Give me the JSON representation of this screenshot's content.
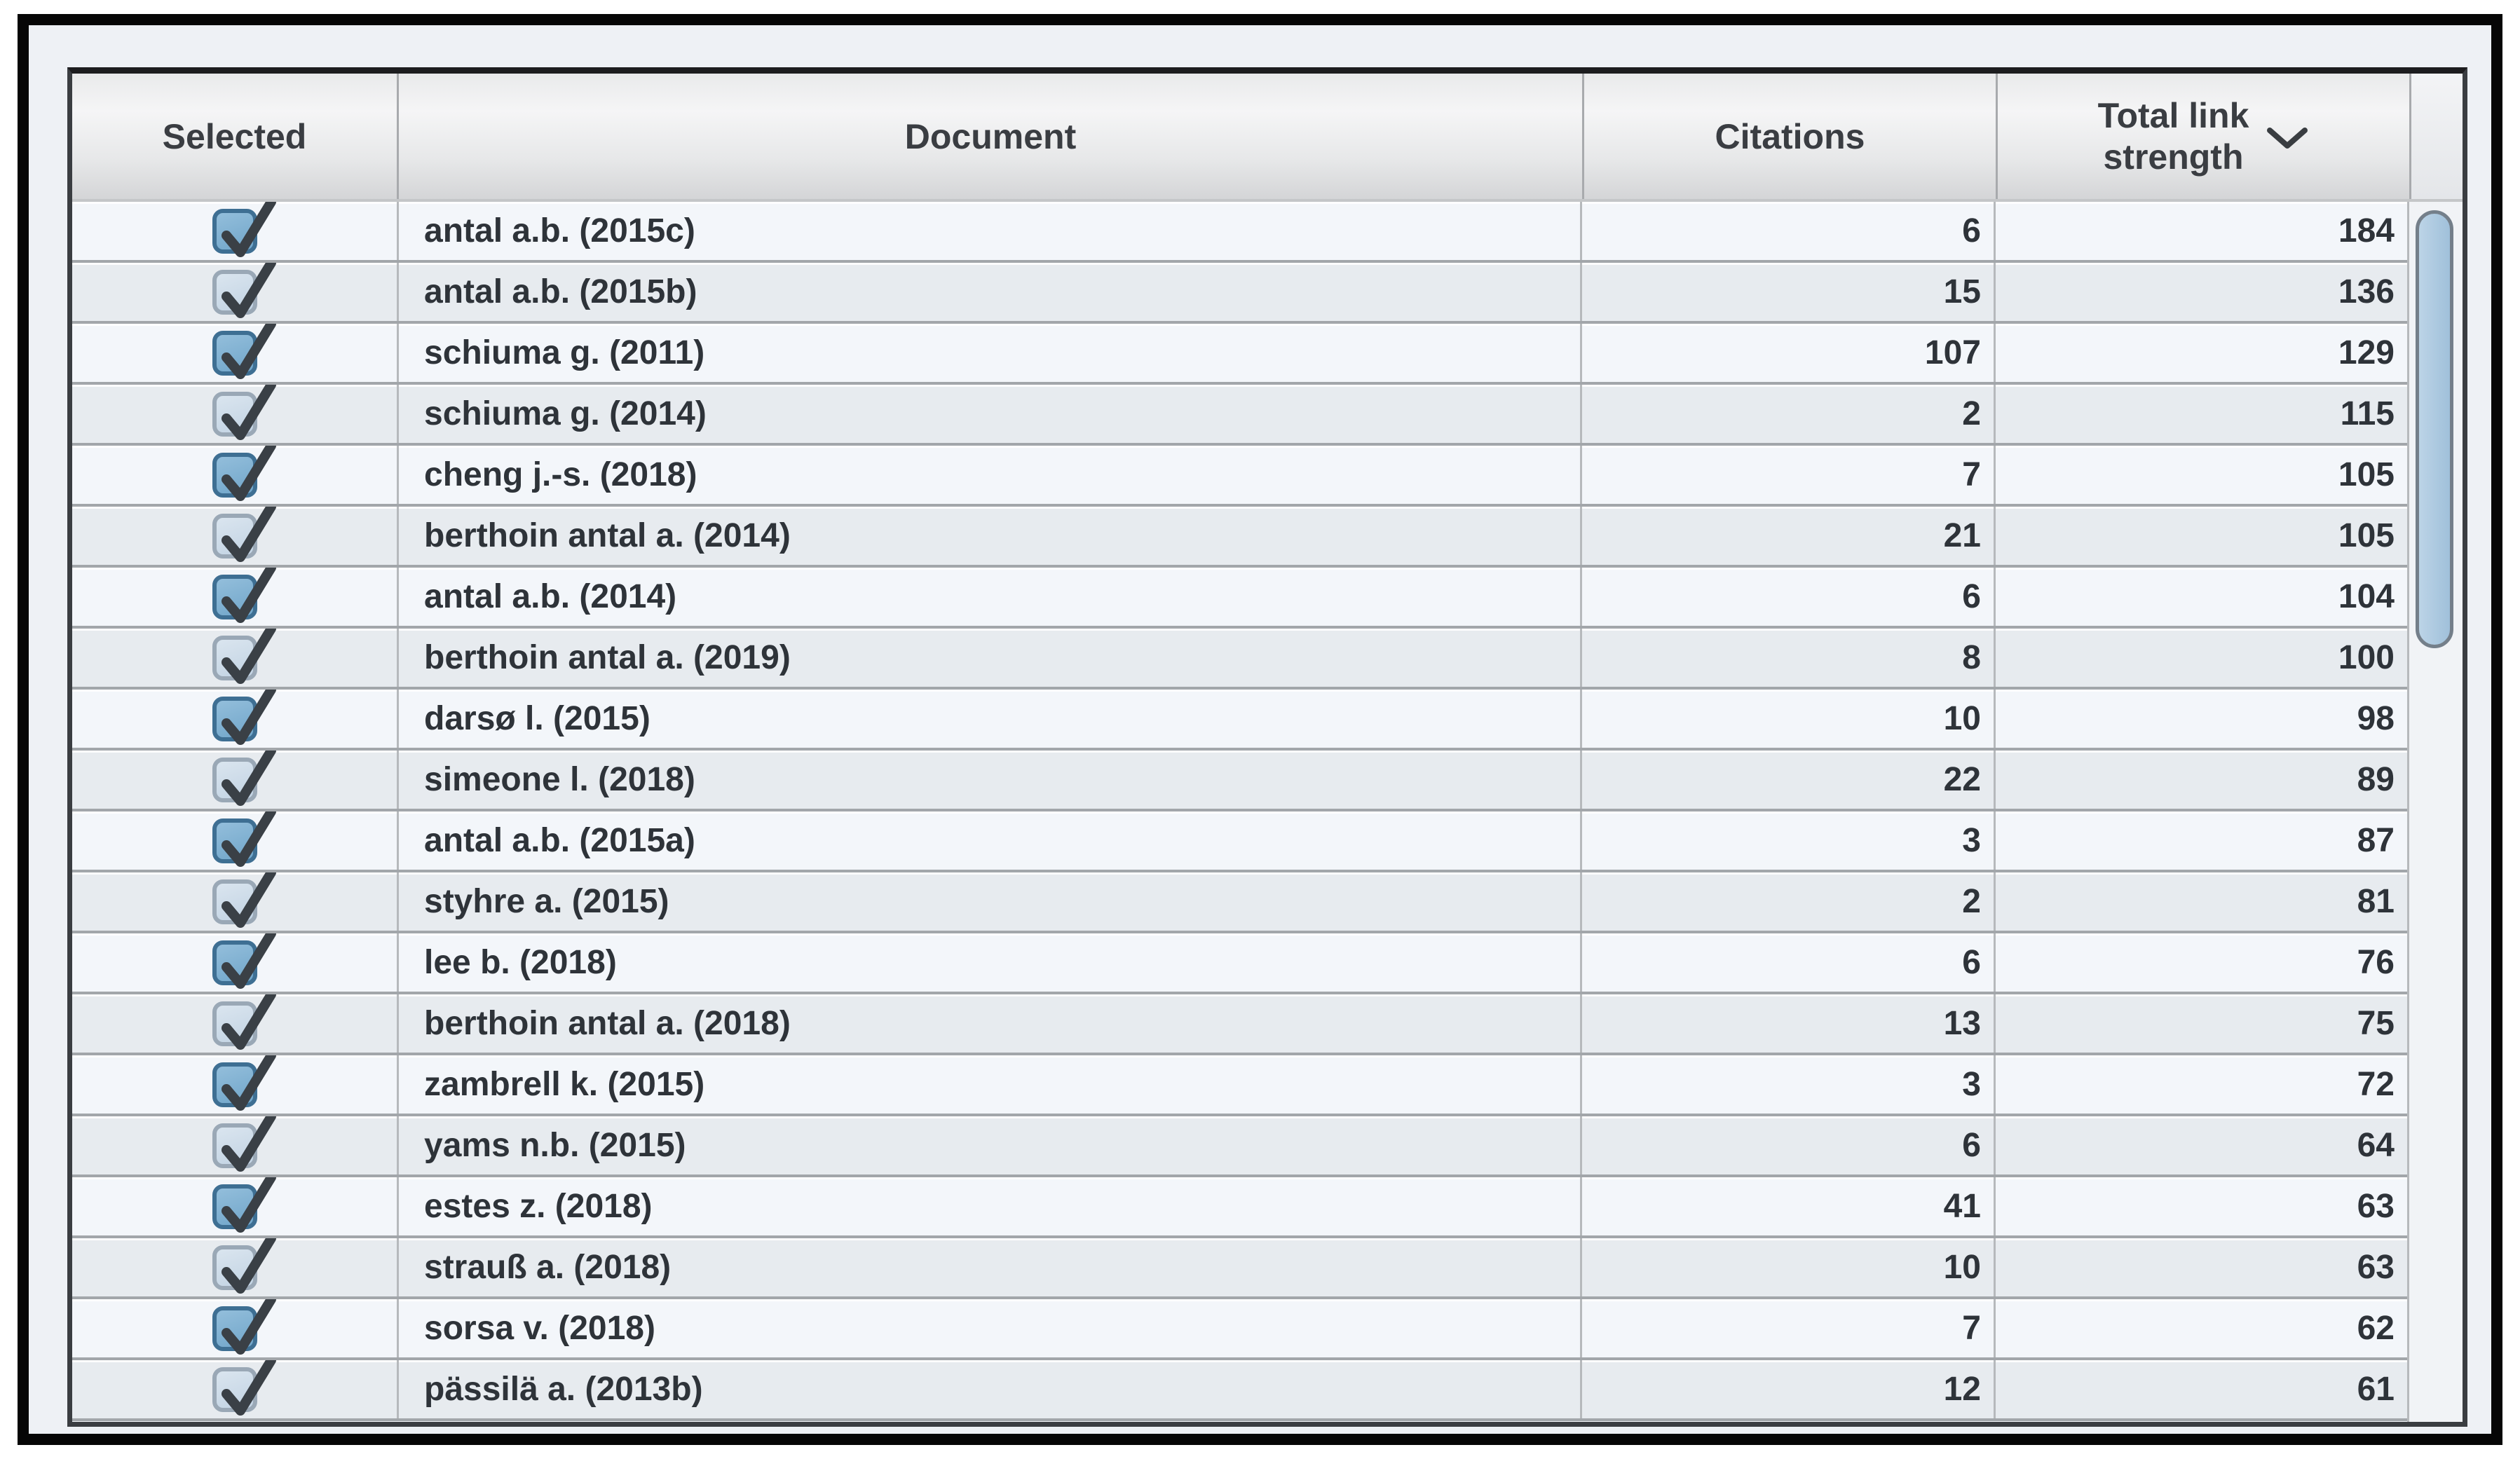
{
  "table": {
    "columns": [
      {
        "key": "selected",
        "label": "Selected"
      },
      {
        "key": "document",
        "label": "Document"
      },
      {
        "key": "citations",
        "label": "Citations"
      },
      {
        "key": "total_link_strength",
        "label": "Total link strength",
        "label_line1": "Total link",
        "label_line2": "strength"
      }
    ],
    "sort": {
      "column": "Total link strength",
      "direction": "descending"
    },
    "rows": [
      {
        "selected": true,
        "document": "antal a.b. (2015c)",
        "citations": 6,
        "total_link_strength": 184
      },
      {
        "selected": true,
        "document": "antal a.b. (2015b)",
        "citations": 15,
        "total_link_strength": 136
      },
      {
        "selected": true,
        "document": "schiuma g. (2011)",
        "citations": 107,
        "total_link_strength": 129
      },
      {
        "selected": true,
        "document": "schiuma g. (2014)",
        "citations": 2,
        "total_link_strength": 115
      },
      {
        "selected": true,
        "document": "cheng j.-s. (2018)",
        "citations": 7,
        "total_link_strength": 105
      },
      {
        "selected": true,
        "document": "berthoin antal a. (2014)",
        "citations": 21,
        "total_link_strength": 105
      },
      {
        "selected": true,
        "document": "antal a.b. (2014)",
        "citations": 6,
        "total_link_strength": 104
      },
      {
        "selected": true,
        "document": "berthoin antal a. (2019)",
        "citations": 8,
        "total_link_strength": 100
      },
      {
        "selected": true,
        "document": "darsø l. (2015)",
        "citations": 10,
        "total_link_strength": 98
      },
      {
        "selected": true,
        "document": "simeone l. (2018)",
        "citations": 22,
        "total_link_strength": 89
      },
      {
        "selected": true,
        "document": "antal a.b. (2015a)",
        "citations": 3,
        "total_link_strength": 87
      },
      {
        "selected": true,
        "document": "styhre a. (2015)",
        "citations": 2,
        "total_link_strength": 81
      },
      {
        "selected": true,
        "document": "lee b. (2018)",
        "citations": 6,
        "total_link_strength": 76
      },
      {
        "selected": true,
        "document": "berthoin antal a. (2018)",
        "citations": 13,
        "total_link_strength": 75
      },
      {
        "selected": true,
        "document": "zambrell k. (2015)",
        "citations": 3,
        "total_link_strength": 72
      },
      {
        "selected": true,
        "document": "yams n.b. (2015)",
        "citations": 6,
        "total_link_strength": 64
      },
      {
        "selected": true,
        "document": "estes z. (2018)",
        "citations": 41,
        "total_link_strength": 63
      },
      {
        "selected": true,
        "document": "strauß a. (2018)",
        "citations": 10,
        "total_link_strength": 63
      },
      {
        "selected": true,
        "document": "sorsa v. (2018)",
        "citations": 7,
        "total_link_strength": 62
      },
      {
        "selected": true,
        "document": "pässilä a. (2013b)",
        "citations": 12,
        "total_link_strength": 61
      }
    ]
  },
  "colors": {
    "checkbox_strong_fill": "#74a8cc",
    "checkbox_strong_border": "#3e6f93",
    "checkbox_pale_fill": "#c9d8e7",
    "checkbox_pale_border": "#9aa8b6",
    "checkmark": "#3a4046",
    "scrollbar_thumb": "#a9c7e0",
    "row_light": "#f3f6fa",
    "row_dark": "#e7ebef"
  }
}
